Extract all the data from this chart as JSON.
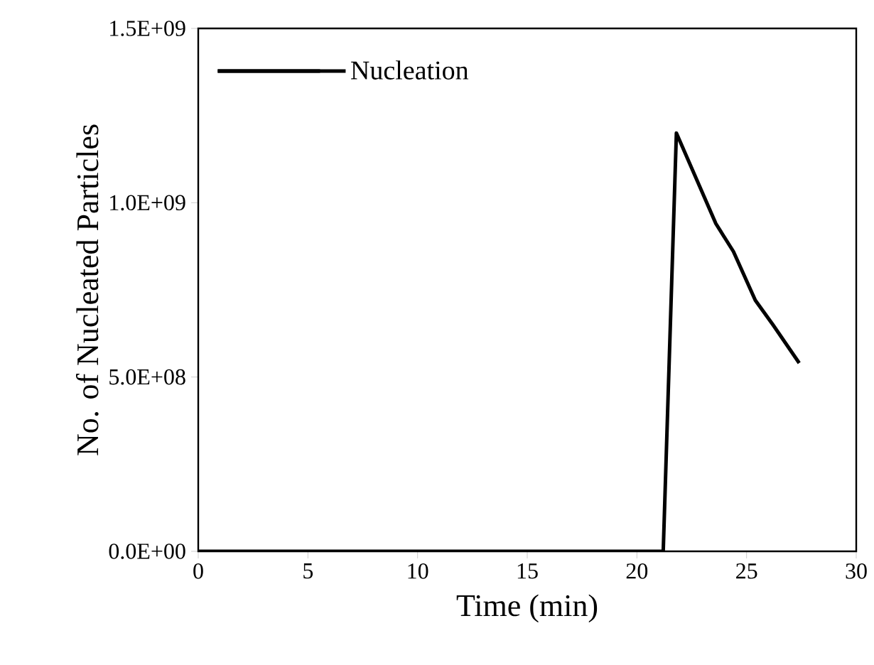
{
  "chart_data": {
    "type": "line",
    "xlabel": "Time (min)",
    "ylabel": "No. of Nucleated Particles",
    "xlim": [
      0,
      30
    ],
    "xticks": [
      0,
      5,
      10,
      15,
      20,
      25,
      30
    ],
    "ylim": [
      0,
      1500000000
    ],
    "yticks": [
      {
        "value": 0,
        "label": "0.0E+00"
      },
      {
        "value": 500000000,
        "label": "5.0E+08"
      },
      {
        "value": 1000000000,
        "label": "1.0E+09"
      },
      {
        "value": 1500000000,
        "label": "1.5E+09"
      }
    ],
    "legend": "top left",
    "grid": false,
    "marker": "none",
    "line_style": "solid",
    "series": [
      {
        "name": "Nucleation",
        "color": "#000000",
        "x": [
          0,
          21.2,
          21.8,
          23.6,
          24.4,
          25.4,
          26.2,
          27.4
        ],
        "values": [
          0,
          0,
          1200000000,
          940000000,
          860000000,
          720000000,
          650000000,
          540000000
        ]
      }
    ]
  }
}
